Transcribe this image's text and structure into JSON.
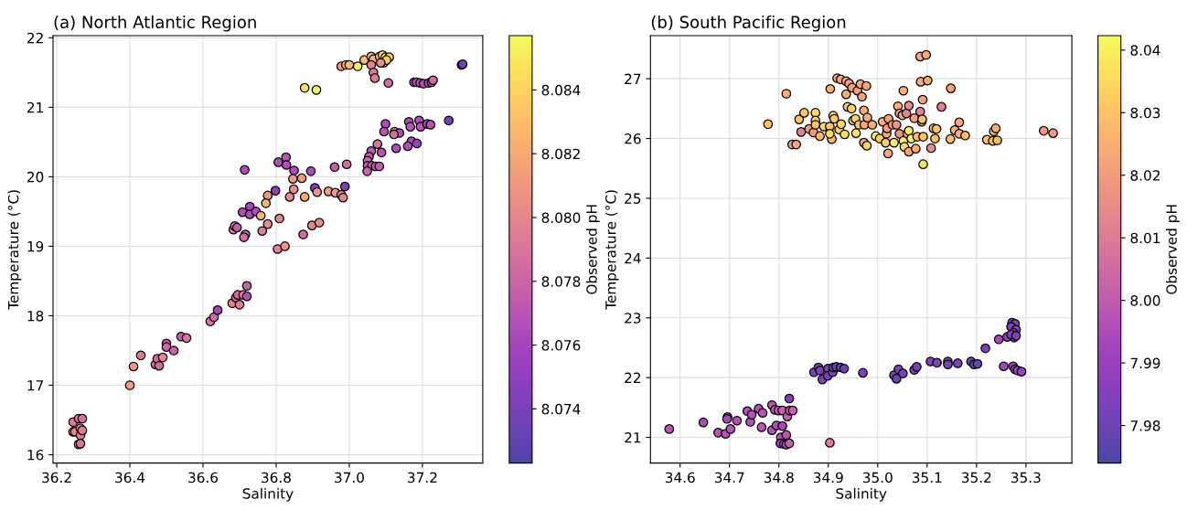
{
  "chart_data": [
    {
      "type": "scatter",
      "title": "(a) North Atlantic Region",
      "xlabel": "Salinity",
      "ylabel": "Temperature (°C)",
      "clabel": "Observed pH",
      "xlim": [
        36.19,
        37.365
      ],
      "ylim": [
        15.88,
        22.03
      ],
      "xticks": [
        36.2,
        36.4,
        36.6,
        36.8,
        {
          "value": 37,
          "label": "37.0"
        },
        37.2
      ],
      "yticks": [
        16,
        17,
        18,
        19,
        20,
        21,
        22
      ],
      "clim": [
        8.0723,
        8.0857
      ],
      "cticks": [
        {
          "value": 8.074,
          "label": "8.074"
        },
        {
          "value": 8.076,
          "label": "8.076"
        },
        {
          "value": 8.078,
          "label": "8.078"
        },
        {
          "value": 8.08,
          "label": "8.080"
        },
        {
          "value": 8.082,
          "label": "8.082"
        },
        {
          "value": 8.084,
          "label": "8.084"
        }
      ],
      "grid": true,
      "marker": "circle",
      "x": [
        36.245,
        36.26,
        36.27,
        36.245,
        36.25,
        36.265,
        36.265,
        36.26,
        36.265,
        36.27,
        36.4,
        36.41,
        36.43,
        36.47,
        36.475,
        36.48,
        36.49,
        36.5,
        36.5,
        36.52,
        36.54,
        36.555,
        36.62,
        36.63,
        36.64,
        36.68,
        36.69,
        36.7,
        36.695,
        36.71,
        36.72,
        36.72,
        36.714,
        36.806,
        36.827,
        36.828,
        36.849,
        36.895,
        36.96,
        36.846,
        36.87,
        36.798,
        36.777,
        36.772,
        36.848,
        36.837,
        36.878,
        36.906,
        36.912,
        36.943,
        36.962,
        36.978,
        36.983,
        36.988,
        36.708,
        36.728,
        36.728,
        36.745,
        36.758,
        36.809,
        36.777,
        36.762,
        36.683,
        36.687,
        36.693,
        36.716,
        36.712,
        36.874,
        36.898,
        36.918,
        36.804,
        36.824,
        37.099,
        37.095,
        37.124,
        37.137,
        37.122,
        37.163,
        37.167,
        37.191,
        37.195,
        37.213,
        37.222,
        37.272,
        37.077,
        37.06,
        37.054,
        37.05,
        37.088,
        37.128,
        37.17,
        37.16,
        37.185,
        36.993,
        37.05,
        37.062,
        37.072,
        37.082,
        37.049,
        36.978,
        36.991,
        37.0,
        37.023,
        37.041,
        37.06,
        37.066,
        37.06,
        37.066,
        37.07,
        37.107,
        37.083,
        37.091,
        37.099,
        37.109,
        37.094,
        37.102,
        37.086,
        36.878,
        36.91,
        37.307,
        37.31,
        37.177,
        37.184,
        37.194,
        37.203,
        37.217,
        37.225,
        37.229
      ],
      "values": [
        16.47,
        16.52,
        16.52,
        16.33,
        16.33,
        16.38,
        16.28,
        16.15,
        16.16,
        16.35,
        17.0,
        17.27,
        17.43,
        17.3,
        17.38,
        17.28,
        17.4,
        17.6,
        17.55,
        17.5,
        17.7,
        17.68,
        17.92,
        17.98,
        18.08,
        18.18,
        18.26,
        18.16,
        18.3,
        18.3,
        18.28,
        18.43,
        20.1,
        20.21,
        20.28,
        20.17,
        20.09,
        20.08,
        20.14,
        19.97,
        19.98,
        19.8,
        19.73,
        19.62,
        19.82,
        19.71,
        19.71,
        19.84,
        19.78,
        19.79,
        19.77,
        19.74,
        19.7,
        19.86,
        19.49,
        19.57,
        19.46,
        19.5,
        19.44,
        19.4,
        19.32,
        19.22,
        19.24,
        19.29,
        19.27,
        19.17,
        19.13,
        19.17,
        19.3,
        19.34,
        18.96,
        19.0,
        20.76,
        20.65,
        20.65,
        20.63,
        20.61,
        20.79,
        20.72,
        20.81,
        20.72,
        20.76,
        20.75,
        20.81,
        20.47,
        20.37,
        20.29,
        20.23,
        20.35,
        20.41,
        20.51,
        20.44,
        20.48,
        20.18,
        20.16,
        20.16,
        20.15,
        20.15,
        20.08,
        21.59,
        21.61,
        21.61,
        21.59,
        21.68,
        21.73,
        21.69,
        21.61,
        21.5,
        21.42,
        21.35,
        21.73,
        21.75,
        21.72,
        21.72,
        21.64,
        21.68,
        21.64,
        21.28,
        21.25,
        21.61,
        21.62,
        21.36,
        21.36,
        21.35,
        21.34,
        21.35,
        21.36,
        21.39
      ],
      "cvalues": [
        8.0795,
        8.079,
        8.0785,
        8.0805,
        8.08,
        8.08,
        8.0795,
        8.0795,
        8.079,
        8.0795,
        8.0815,
        8.081,
        8.0795,
        8.079,
        8.0785,
        8.0785,
        8.08,
        8.0775,
        8.078,
        8.078,
        8.0775,
        8.079,
        8.079,
        8.0785,
        8.076,
        8.08,
        8.079,
        8.0795,
        8.0785,
        8.0795,
        8.0765,
        8.078,
        8.0765,
        8.0765,
        8.077,
        8.0765,
        8.0765,
        8.0765,
        8.0775,
        8.081,
        8.081,
        8.075,
        8.081,
        8.0825,
        8.0805,
        8.08,
        8.082,
        8.075,
        8.081,
        8.0815,
        8.081,
        8.08,
        8.08,
        8.074,
        8.0765,
        8.076,
        8.0765,
        8.0765,
        8.0825,
        8.08,
        8.0805,
        8.0795,
        8.0795,
        8.08,
        8.0775,
        8.078,
        8.0785,
        8.0785,
        8.08,
        8.0805,
        8.08,
        8.081,
        8.0765,
        8.077,
        8.079,
        8.0765,
        8.0785,
        8.0765,
        8.077,
        8.0765,
        8.077,
        8.0765,
        8.077,
        8.074,
        8.079,
        8.0775,
        8.0775,
        8.078,
        8.077,
        8.0765,
        8.0765,
        8.0765,
        8.0755,
        8.0785,
        8.0775,
        8.0775,
        8.0775,
        8.0775,
        8.078,
        8.081,
        8.082,
        8.083,
        8.0855,
        8.083,
        8.082,
        8.0825,
        8.08,
        8.0795,
        8.0795,
        8.0785,
        8.083,
        8.0845,
        8.085,
        8.0845,
        8.085,
        8.084,
        8.0805,
        8.0845,
        8.0855,
        8.074,
        8.0735,
        8.0765,
        8.0765,
        8.077,
        8.0765,
        8.0765,
        8.077,
        8.0785
      ]
    },
    {
      "type": "scatter",
      "title": "(b) South Pacific Region",
      "xlabel": "Salinity",
      "ylabel": "Temperature (°C)",
      "clabel": "Observed pH",
      "xlim": [
        34.54,
        35.393
      ],
      "ylim": [
        20.57,
        27.72
      ],
      "xticks": [
        34.6,
        34.7,
        34.8,
        34.9,
        {
          "value": 35,
          "label": "35.0"
        },
        35.1,
        35.2,
        35.3
      ],
      "yticks": [
        21,
        22,
        23,
        24,
        25,
        26,
        27
      ],
      "clim": [
        7.974,
        8.0423
      ],
      "cticks": [
        7.98,
        7.99,
        {
          "value": 8.0,
          "label": "8.00"
        },
        8.01,
        8.02,
        8.03,
        8.04
      ],
      "grid": true,
      "marker": "circle",
      "x": [
        34.778,
        34.815,
        34.827,
        34.835,
        34.841,
        34.845,
        34.851,
        34.861,
        34.87,
        34.874,
        34.874,
        34.874,
        34.883,
        34.891,
        34.903,
        34.904,
        34.907,
        34.903,
        34.91,
        34.912,
        34.918,
        34.925,
        34.922,
        34.926,
        34.933,
        34.936,
        34.936,
        34.939,
        34.942,
        34.947,
        34.948,
        34.95,
        34.955,
        34.956,
        34.959,
        34.962,
        34.965,
        34.968,
        34.972,
        34.973,
        34.972,
        34.977,
        34.978,
        34.979,
        34.989,
        34.996,
        35.004,
        35.01,
        35.016,
        35.018,
        35.019,
        35.021,
        35.022,
        35.03,
        35.033,
        35.038,
        35.041,
        35.044,
        35.044,
        35.05,
        35.052,
        35.052,
        35.054,
        35.058,
        35.06,
        35.063,
        35.063,
        35.063,
        35.068,
        35.074,
        35.077,
        35.08,
        35.086,
        35.086,
        35.087,
        35.089,
        35.09,
        35.091,
        35.092,
        35.092,
        35.098,
        35.101,
        35.108,
        35.113,
        35.116,
        35.119,
        35.129,
        35.147,
        35.148,
        35.156,
        35.165,
        35.165,
        35.177,
        35.221,
        35.233,
        35.235,
        35.239,
        35.242,
        35.336,
        35.355,
        34.578,
        34.647,
        34.677,
        34.692,
        34.696,
        34.695,
        34.702,
        34.715,
        34.736,
        34.742,
        34.745,
        34.759,
        34.765,
        34.767,
        34.786,
        34.786,
        34.792,
        34.795,
        34.799,
        34.804,
        34.807,
        34.807,
        34.803,
        34.81,
        34.815,
        34.815,
        34.817,
        34.821,
        34.822,
        34.828,
        34.821,
        34.871,
        34.88,
        34.883,
        34.888,
        34.899,
        34.899,
        34.909,
        34.91,
        34.916,
        34.925,
        34.932,
        34.903,
        34.97,
        35.033,
        35.038,
        35.042,
        35.051,
        35.074,
        35.079,
        35.107,
        35.12,
        35.142,
        35.142,
        35.162,
        35.189,
        35.195,
        35.202,
        35.218,
        35.245,
        35.255,
        35.262,
        35.274,
        35.278,
        35.283,
        35.291,
        35.276,
        35.272,
        35.278,
        35.27,
        35.28,
        35.275,
        35.27,
        35.28
      ],
      "values": [
        26.24,
        26.75,
        25.9,
        25.9,
        26.32,
        26.11,
        26.43,
        26.16,
        26.1,
        26.43,
        26.3,
        26.23,
        26.04,
        26.2,
        26.2,
        26.83,
        25.99,
        26.08,
        26.38,
        26.33,
        27.01,
        26.99,
        26.15,
        26.24,
        26.07,
        26.96,
        26.74,
        26.53,
        26.92,
        26.5,
        26.85,
        26.3,
        26.33,
        26.09,
        26.8,
        26.23,
        26.91,
        26.7,
        26.47,
        26.23,
        25.93,
        26.88,
        25.88,
        26.35,
        26.23,
        26.04,
        26.0,
        26.28,
        25.93,
        26.08,
        26.17,
        25.75,
        26.33,
        26.23,
        25.93,
        26.23,
        26.54,
        26.42,
        26.08,
        26.39,
        26.8,
        25.96,
        25.86,
        26.42,
        26.08,
        26.55,
        26.13,
        25.78,
        26.0,
        26.34,
        25.83,
        26.03,
        26.45,
        27.37,
        26.95,
        26.28,
        26.32,
        26.65,
        25.57,
        26.03,
        27.4,
        26.97,
        25.84,
        26.17,
        26.0,
        26.16,
        26.53,
        25.99,
        26.84,
        26.14,
        26.27,
        26.08,
        26.05,
        25.98,
        25.96,
        26.12,
        26.17,
        25.97,
        26.13,
        26.09,
        21.14,
        21.25,
        21.08,
        21.06,
        21.34,
        21.31,
        21.14,
        21.28,
        21.44,
        21.26,
        21.38,
        21.48,
        21.17,
        21.41,
        21.54,
        21.12,
        21.46,
        21.2,
        21.45,
        21.0,
        21.19,
        21.45,
        20.9,
        20.89,
        21.04,
        20.88,
        21.35,
        20.9,
        21.45,
        21.45,
        21.65,
        22.09,
        22.17,
        22.12,
        21.97,
        22.15,
        22.03,
        22.09,
        22.17,
        22.18,
        22.17,
        22.15,
        20.91,
        22.08,
        22.04,
        21.98,
        22.14,
        22.07,
        22.13,
        22.18,
        22.27,
        22.25,
        22.27,
        22.22,
        22.24,
        22.27,
        22.22,
        22.23,
        22.49,
        22.64,
        22.19,
        22.68,
        22.19,
        22.14,
        22.12,
        22.1,
        22.67,
        22.92,
        22.9,
        22.85,
        22.8,
        22.75,
        22.72,
        22.7
      ],
      "cvalues": [
        8.03,
        8.025,
        8.022,
        8.022,
        8.03,
        8.012,
        8.03,
        8.02,
        8.02,
        8.035,
        8.033,
        8.03,
        8.028,
        8.034,
        8.03,
        8.025,
        8.028,
        8.035,
        8.034,
        8.032,
        8.022,
        8.022,
        8.032,
        8.035,
        8.037,
        8.022,
        8.024,
        8.032,
        8.022,
        8.033,
        8.022,
        8.03,
        8.035,
        8.038,
        8.022,
        8.03,
        8.022,
        8.022,
        8.025,
        8.023,
        8.022,
        8.022,
        8.033,
        8.025,
        8.024,
        8.04,
        8.033,
        8.024,
        8.032,
        8.024,
        8.02,
        8.023,
        8.022,
        8.02,
        8.04,
        8.018,
        8.025,
        8.02,
        8.018,
        8.021,
        8.025,
        8.04,
        8.035,
        8.013,
        8.022,
        8.015,
        8.04,
        8.022,
        8.04,
        8.022,
        8.025,
        8.028,
        8.012,
        8.024,
        8.024,
        8.022,
        8.03,
        8.022,
        8.038,
        8.03,
        8.023,
        8.023,
        8.015,
        8.028,
        8.03,
        8.03,
        8.012,
        8.03,
        8.022,
        8.025,
        8.024,
        8.025,
        8.028,
        8.03,
        8.03,
        8.03,
        8.025,
        8.028,
        8.02,
        8.02,
        7.998,
        7.995,
        7.998,
        7.997,
        7.994,
        7.993,
        7.998,
        7.997,
        7.996,
        7.996,
        7.996,
        7.996,
        7.998,
        7.998,
        7.998,
        7.996,
        8.002,
        7.996,
        8.0,
        7.996,
        7.993,
        8.002,
        7.993,
        7.995,
        7.999,
        7.993,
        8.001,
        8.002,
        8.004,
        8.002,
        7.985,
        7.983,
        7.985,
        7.982,
        7.985,
        7.985,
        7.982,
        7.983,
        7.979,
        7.978,
        7.978,
        7.98,
        8.01,
        7.983,
        7.983,
        7.98,
        7.982,
        7.983,
        7.982,
        7.983,
        7.985,
        7.984,
        7.983,
        7.982,
        7.984,
        7.982,
        7.978,
        7.978,
        7.983,
        7.994,
        7.993,
        7.988,
        7.99,
        7.99,
        7.99,
        7.99,
        7.982,
        7.98,
        7.984,
        7.986,
        7.988,
        7.982,
        7.985,
        7.983
      ]
    }
  ]
}
